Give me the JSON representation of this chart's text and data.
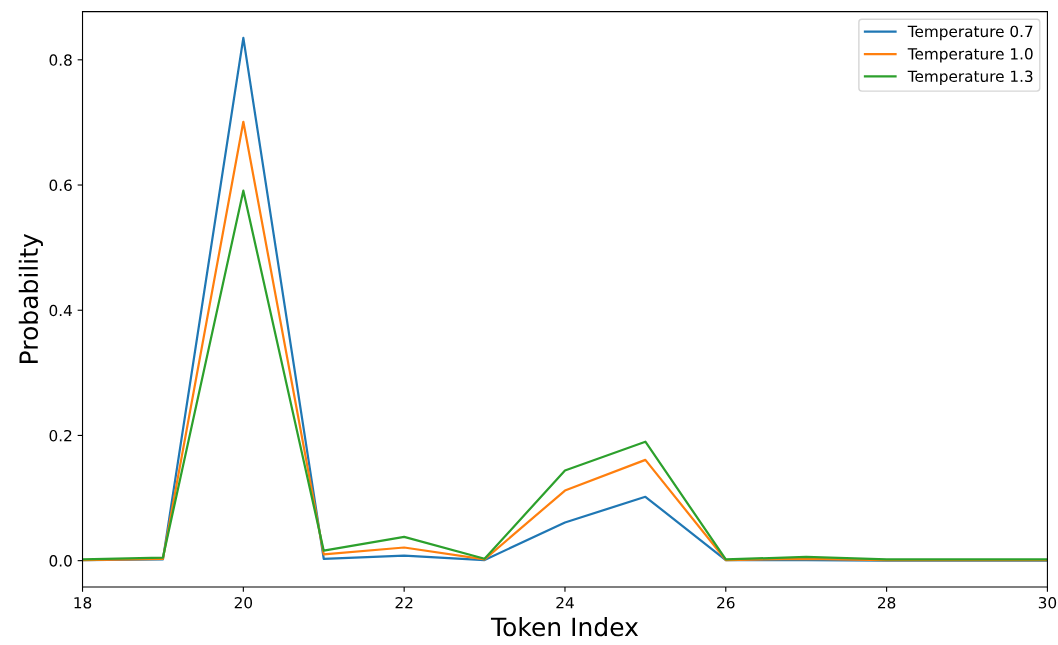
{
  "chart_data": {
    "type": "line",
    "xlabel": "Token Index",
    "ylabel": "Probability",
    "x": [
      18,
      19,
      20,
      21,
      22,
      23,
      24,
      25,
      26,
      27,
      28,
      29,
      30
    ],
    "series": [
      {
        "name": "Temperature 0.7",
        "color": "#1f77b4",
        "values": [
          0.001,
          0.002,
          0.835,
          0.003,
          0.008,
          0.001,
          0.061,
          0.102,
          0.001,
          0.001,
          0.0,
          0.0,
          0.0
        ]
      },
      {
        "name": "Temperature 1.0",
        "color": "#ff7f0e",
        "values": [
          0.001,
          0.003,
          0.701,
          0.01,
          0.021,
          0.002,
          0.112,
          0.161,
          0.001,
          0.003,
          0.001,
          0.001,
          0.001
        ]
      },
      {
        "name": "Temperature 1.3",
        "color": "#2ca02c",
        "values": [
          0.002,
          0.005,
          0.591,
          0.016,
          0.038,
          0.003,
          0.144,
          0.19,
          0.002,
          0.006,
          0.002,
          0.002,
          0.002
        ]
      }
    ],
    "xlim": [
      18,
      30
    ],
    "xticks": [
      18,
      20,
      22,
      24,
      26,
      28,
      30
    ],
    "ylim": [
      -0.042,
      0.877
    ],
    "yticks": [
      {
        "value": 0,
        "label": "0.0"
      },
      0.2,
      0.4,
      0.6,
      0.8
    ],
    "legend": "top right",
    "grid": false
  }
}
